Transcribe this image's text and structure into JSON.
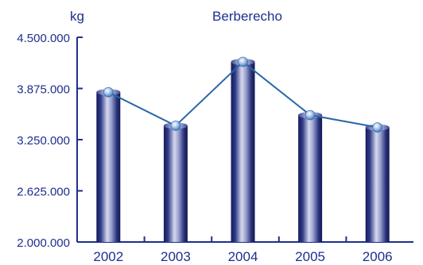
{
  "chart_data": {
    "type": "bar",
    "title": "Berberecho",
    "ylabel": "kg",
    "xlabel": "",
    "categories": [
      "2002",
      "2003",
      "2004",
      "2005",
      "2006"
    ],
    "values": [
      3830000,
      3420000,
      4200000,
      3550000,
      3400000
    ],
    "ylim": [
      2000000,
      4500000
    ],
    "yticks": [
      2000000,
      2625000,
      3250000,
      3875000,
      4500000
    ],
    "ytick_labels": [
      "2.000.000",
      "2.625.000",
      "3.250.000",
      "3.875.000",
      "4.500.000"
    ],
    "overlay": "line",
    "grid": false,
    "colors": {
      "text": "#1e2f8e",
      "axis": "#1e2f8e",
      "line": "#2a66a8",
      "bar_dark": "#141c5c",
      "bar_light": "#c9cde6",
      "marker": "#8fb6e8"
    }
  }
}
